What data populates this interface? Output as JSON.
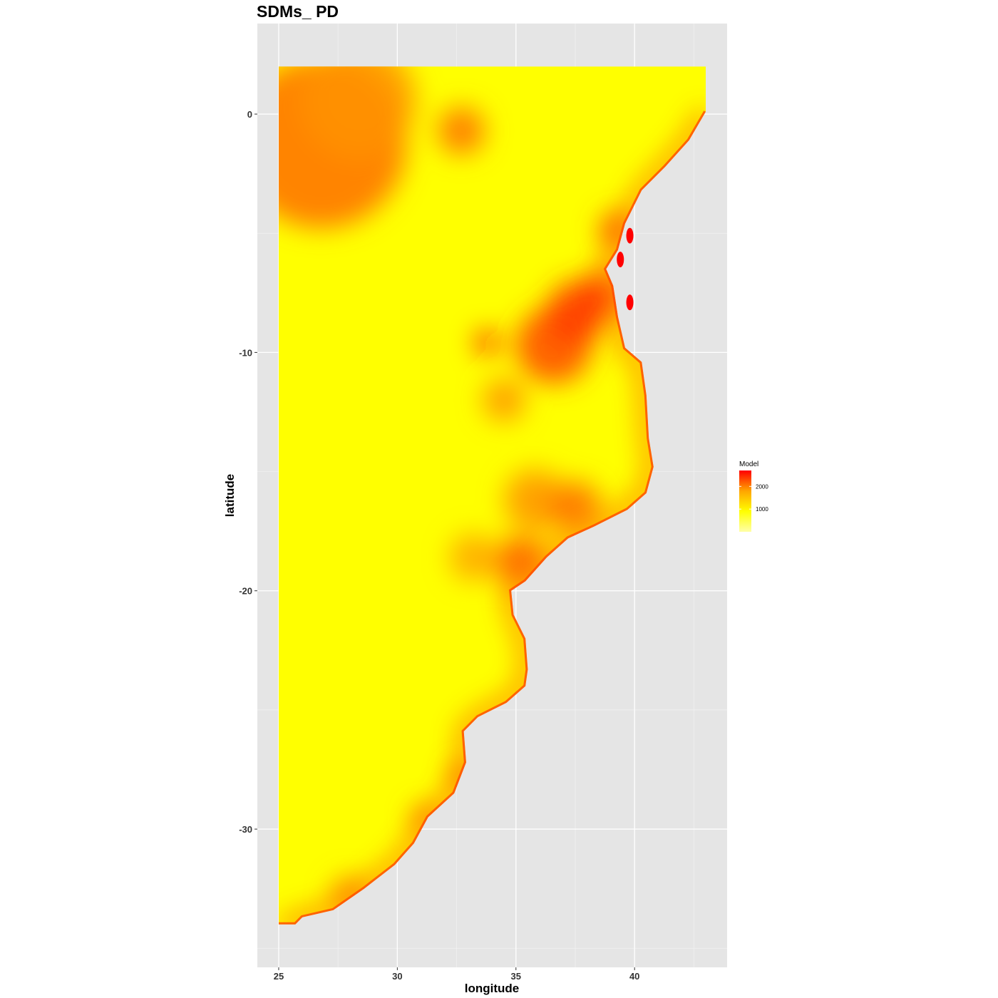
{
  "chart_data": {
    "type": "heatmap",
    "title": "SDMs_ PD",
    "xlabel": "longitude",
    "ylabel": "latitude",
    "xlim": [
      24.1,
      43.9
    ],
    "ylim": [
      -35.8,
      3.8
    ],
    "x_ticks": [
      25,
      30,
      35,
      40
    ],
    "y_ticks": [
      0,
      -10,
      -20,
      -30
    ],
    "x_tick_labels": [
      "25",
      "30",
      "35",
      "40"
    ],
    "y_tick_labels": [
      "0",
      "-10",
      "-20",
      "-30"
    ],
    "grid": true,
    "background": "#e5e5e5",
    "legend": {
      "title": "Model",
      "placement": "right",
      "labels": [
        "2000",
        "1000"
      ],
      "values": [
        2000,
        1000
      ],
      "range": [
        0,
        2700
      ],
      "colors": [
        "#ffffa8",
        "#ffff00",
        "#ffa500",
        "#ff0000"
      ]
    },
    "land_outline": [
      [
        25,
        2
      ],
      [
        43,
        2
      ],
      [
        43,
        0.1
      ],
      [
        42.3,
        -1.1
      ],
      [
        41.3,
        -2.2
      ],
      [
        40.3,
        -3.2
      ],
      [
        39.6,
        -4.6
      ],
      [
        39.3,
        -5.7
      ],
      [
        38.8,
        -6.5
      ],
      [
        39.1,
        -7.2
      ],
      [
        39.3,
        -8.5
      ],
      [
        39.6,
        -9.8
      ],
      [
        40.3,
        -10.4
      ],
      [
        40.5,
        -11.8
      ],
      [
        40.6,
        -13.6
      ],
      [
        40.8,
        -14.8
      ],
      [
        40.5,
        -15.9
      ],
      [
        39.7,
        -16.6
      ],
      [
        38.3,
        -17.3
      ],
      [
        37.2,
        -17.8
      ],
      [
        36.3,
        -18.6
      ],
      [
        35.4,
        -19.6
      ],
      [
        34.8,
        -20.0
      ],
      [
        34.9,
        -21.0
      ],
      [
        35.4,
        -22.0
      ],
      [
        35.5,
        -23.3
      ],
      [
        35.4,
        -24.0
      ],
      [
        34.6,
        -24.7
      ],
      [
        33.4,
        -25.3
      ],
      [
        32.8,
        -25.9
      ],
      [
        32.9,
        -27.2
      ],
      [
        32.4,
        -28.5
      ],
      [
        31.3,
        -29.5
      ],
      [
        30.7,
        -30.6
      ],
      [
        29.9,
        -31.5
      ],
      [
        28.6,
        -32.5
      ],
      [
        27.3,
        -33.4
      ],
      [
        26.0,
        -33.7
      ],
      [
        25.7,
        -34.0
      ],
      [
        25.0,
        -34.0
      ]
    ],
    "hotspots": [
      {
        "lon": 26.8,
        "lat": -1.2,
        "value": 2100,
        "radius": 3.6
      },
      {
        "lon": 28.4,
        "lat": 0.6,
        "value": 1900,
        "radius": 2.4
      },
      {
        "lon": 32.7,
        "lat": -0.7,
        "value": 2100,
        "radius": 1.0
      },
      {
        "lon": 36.6,
        "lat": -9.7,
        "value": 2300,
        "radius": 1.6
      },
      {
        "lon": 37.6,
        "lat": -8.3,
        "value": 2400,
        "radius": 1.3
      },
      {
        "lon": 38.6,
        "lat": -7.6,
        "value": 2400,
        "radius": 1.0
      },
      {
        "lon": 39.3,
        "lat": -4.9,
        "value": 2200,
        "radius": 0.8
      },
      {
        "lon": 33.8,
        "lat": -9.6,
        "value": 2600,
        "radius": 0.5
      },
      {
        "lon": 34.5,
        "lat": -12.0,
        "value": 1900,
        "radius": 0.9
      },
      {
        "lon": 35.8,
        "lat": -16.2,
        "value": 1900,
        "radius": 1.3
      },
      {
        "lon": 37.5,
        "lat": -16.5,
        "value": 2100,
        "radius": 1.1
      },
      {
        "lon": 35.2,
        "lat": -18.8,
        "value": 2200,
        "radius": 1.1
      },
      {
        "lon": 33.2,
        "lat": -18.6,
        "value": 1800,
        "radius": 1.0
      },
      {
        "lon": 32.8,
        "lat": -27.8,
        "value": 2100,
        "radius": 0.6
      },
      {
        "lon": 31.2,
        "lat": -29.6,
        "value": 2000,
        "radius": 0.6
      },
      {
        "lon": 28.0,
        "lat": -32.8,
        "value": 1900,
        "radius": 0.8
      }
    ],
    "islands": [
      {
        "lon": 39.8,
        "lat": -5.1,
        "value": 2700
      },
      {
        "lon": 39.4,
        "lat": -6.1,
        "value": 2700
      },
      {
        "lon": 39.8,
        "lat": -7.9,
        "value": 2700
      }
    ]
  }
}
